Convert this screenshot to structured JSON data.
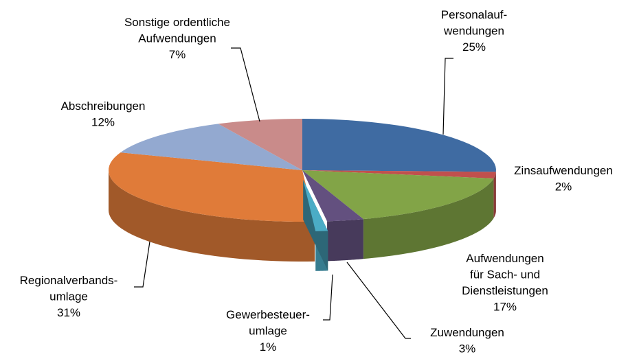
{
  "chart_data": {
    "type": "pie",
    "categories": [
      "Personalauf-\nwendungen",
      "Zinsaufwendungen",
      "Aufwendungen\nfür Sach- und\nDienstleistungen",
      "Zuwendungen",
      "Gewerbesteuer-\numlage",
      "Regionalverbands-\numlage",
      "Abschreibungen",
      "Sonstige ordentliche\nAufwendungen"
    ],
    "values": [
      25,
      2,
      17,
      3,
      1,
      31,
      12,
      7
    ],
    "value_labels": [
      "25%",
      "2%",
      "17%",
      "3%",
      "1%",
      "31%",
      "12%",
      "7%"
    ],
    "colors": [
      "#3f6ba2",
      "#c0504d",
      "#82a447",
      "#63507f",
      "#4bacc6",
      "#e07b39",
      "#93a9d0",
      "#c98b8a"
    ],
    "exploded": [
      4
    ]
  }
}
